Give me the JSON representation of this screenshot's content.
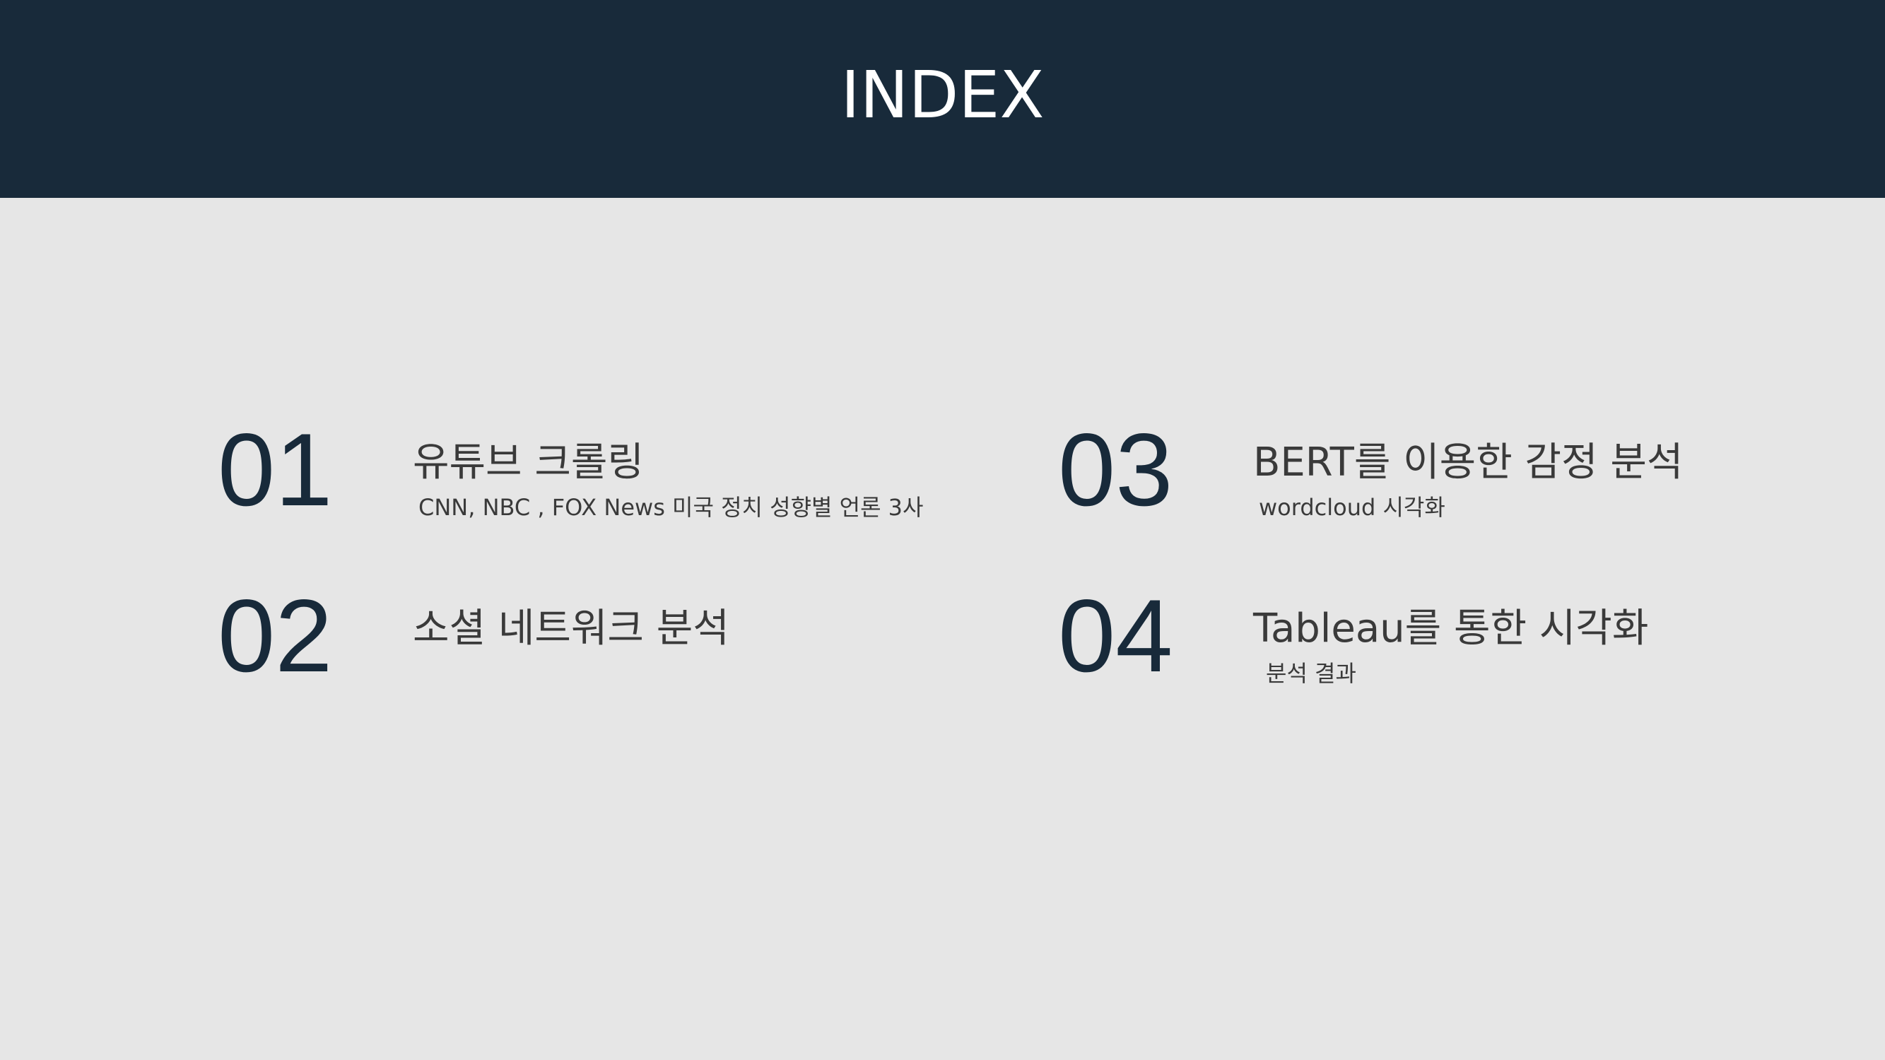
{
  "header": {
    "title": "INDEX"
  },
  "items": [
    {
      "number": "01",
      "title": "유튜브 크롤링",
      "subtitle": "CNN, NBC , FOX News 미국 정치 성향별 언론 3사"
    },
    {
      "number": "02",
      "title": "소셜 네트워크 분석",
      "subtitle": ""
    },
    {
      "number": "03",
      "title": "BERT를 이용한 감정 분석",
      "subtitle": "wordcloud 시각화"
    },
    {
      "number": "04",
      "title": "Tableau를 통한 시각화",
      "subtitle": "분석 결과"
    }
  ],
  "colors": {
    "header_bg": "#182a3a",
    "page_bg": "#e6e6e6",
    "number_color": "#182a3a",
    "text_color": "#3a3a3a"
  }
}
